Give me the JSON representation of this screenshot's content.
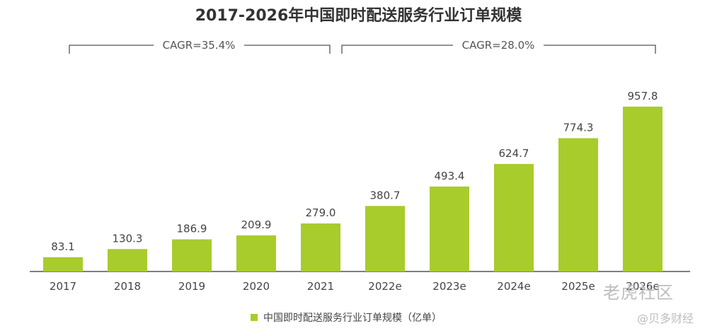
{
  "chart_data": {
    "type": "bar",
    "title": "2017-2026年中国即时配送服务行业订单规模",
    "categories": [
      "2017",
      "2018",
      "2019",
      "2020",
      "2021",
      "2022e",
      "2023e",
      "2024e",
      "2025e",
      "2026e"
    ],
    "series": [
      {
        "name": "中国即时配送服务行业订单规模（亿单）",
        "values": [
          83.1,
          130.3,
          186.9,
          209.9,
          279.0,
          380.7,
          493.4,
          624.7,
          774.3,
          957.8
        ],
        "labels": [
          "83.1",
          "130.3",
          "186.9",
          "209.9",
          "279.0",
          "380.7",
          "493.4",
          "624.7",
          "774.3",
          "957.8"
        ]
      }
    ],
    "annotations": [
      {
        "text": "CAGR=35.4%",
        "from": "2017",
        "to": "2021"
      },
      {
        "text": "CAGR=28.0%",
        "from": "2022e",
        "to": "2026e"
      }
    ],
    "xlabel": "",
    "ylabel": "",
    "ylim": [
      0,
      1000
    ],
    "grid": false,
    "legend_position": "bottom"
  },
  "colors": {
    "bar": "#a8cc2c",
    "axis": "#555555",
    "bracket": "#555555"
  },
  "watermarks": [
    "老虎社区",
    "@贝多财经"
  ]
}
